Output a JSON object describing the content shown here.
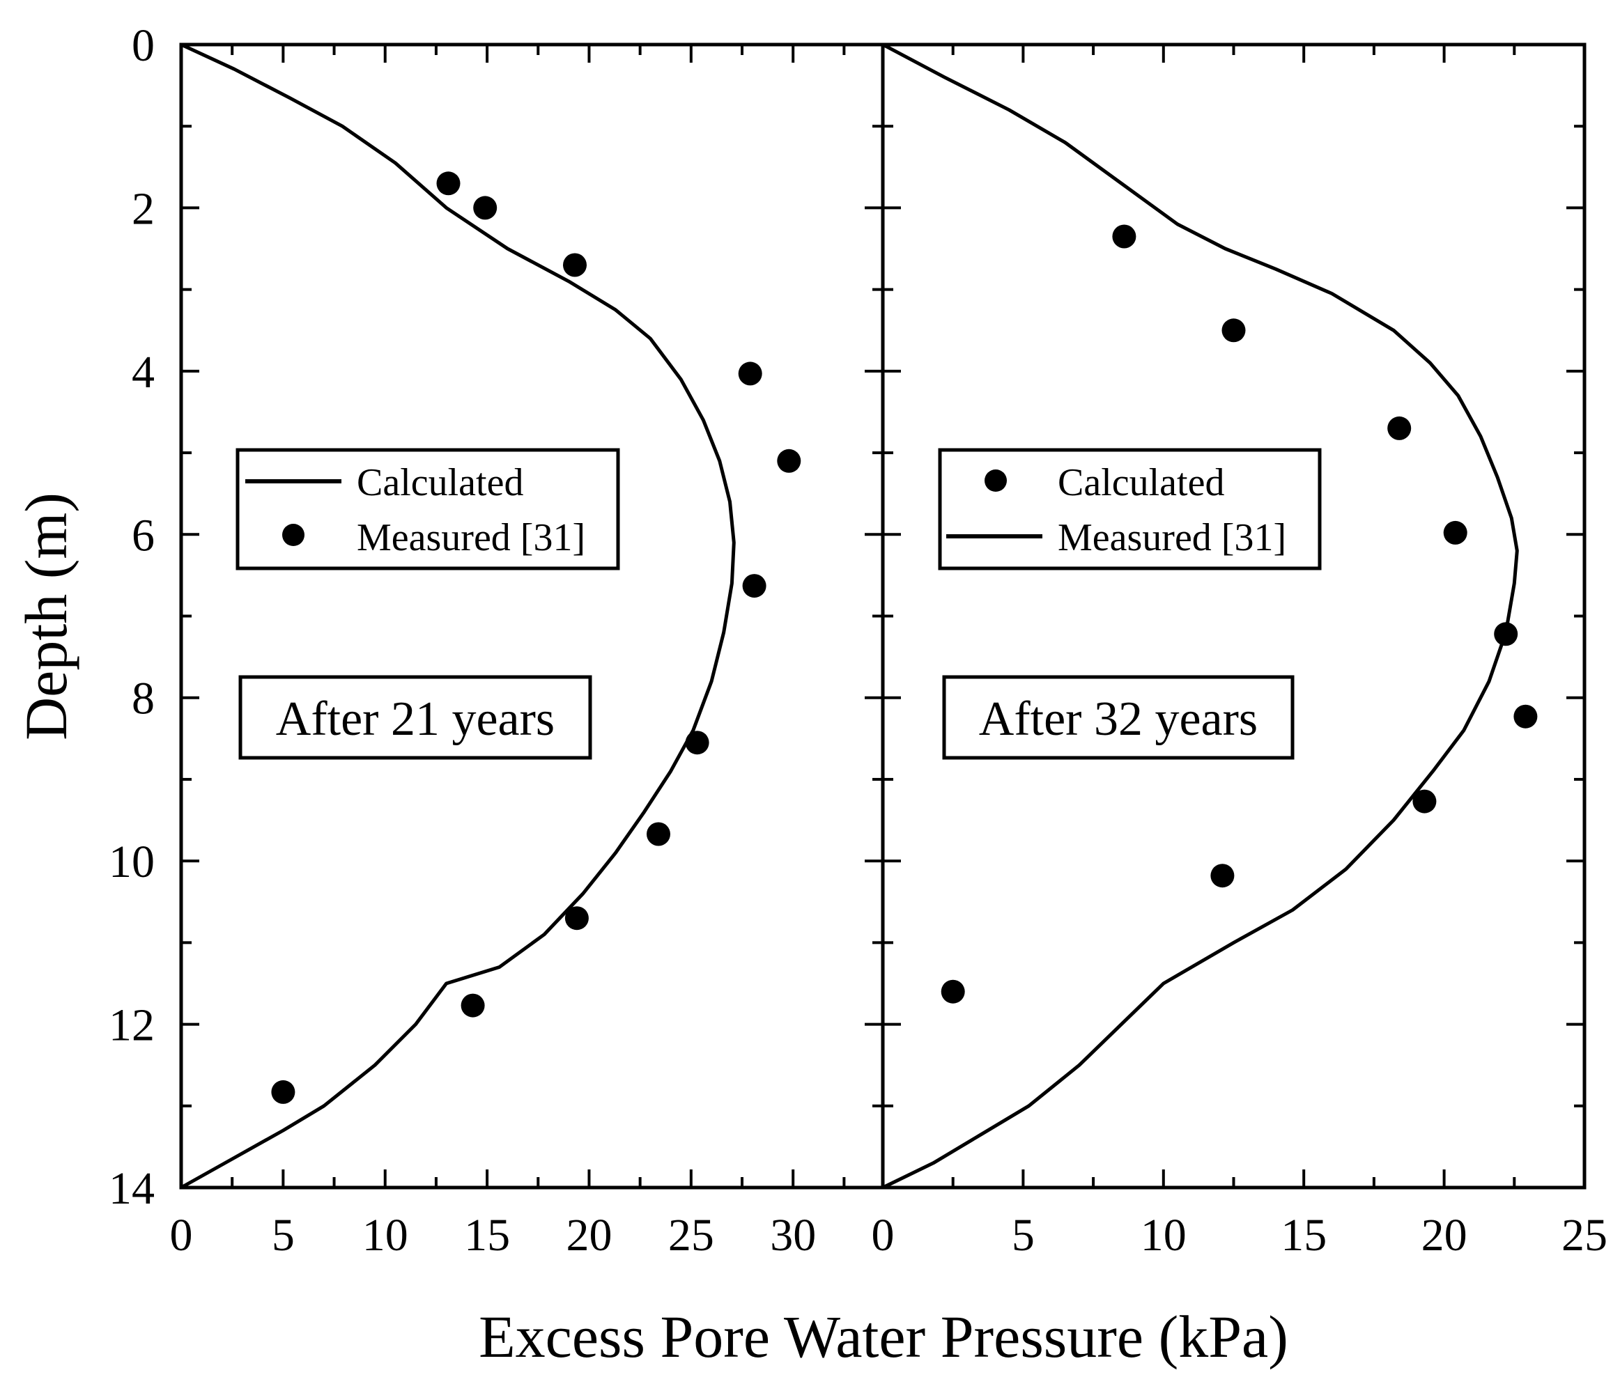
{
  "chart_data": [
    {
      "type": "line+scatter",
      "panel": "left",
      "annotation": "After 21 years",
      "xlim": [
        0,
        34.4
      ],
      "ylim": [
        14,
        0
      ],
      "xticks": [
        "0",
        "5",
        "10",
        "15",
        "20",
        "25",
        "30"
      ],
      "yticks": [
        "0",
        "2",
        "4",
        "6",
        "8",
        "10",
        "12",
        "14"
      ],
      "ylabel": "Depth (m)",
      "legend": [
        {
          "label": "Calculated",
          "marker": "line"
        },
        {
          "label": "Measured [31]",
          "marker": "dot"
        }
      ],
      "series": [
        {
          "name": "Calculated",
          "kind": "line",
          "points": [
            [
              0,
              0
            ],
            [
              2.6,
              0.3
            ],
            [
              5.3,
              0.65
            ],
            [
              7.9,
              1.0
            ],
            [
              10.5,
              1.45
            ],
            [
              13,
              2.0
            ],
            [
              16,
              2.5
            ],
            [
              19,
              2.9
            ],
            [
              21.3,
              3.25
            ],
            [
              23,
              3.6
            ],
            [
              24.5,
              4.1
            ],
            [
              25.6,
              4.6
            ],
            [
              26.4,
              5.1
            ],
            [
              26.9,
              5.6
            ],
            [
              27.1,
              6.1
            ],
            [
              27,
              6.6
            ],
            [
              26.6,
              7.2
            ],
            [
              26,
              7.8
            ],
            [
              25.1,
              8.4
            ],
            [
              24,
              8.9
            ],
            [
              22.7,
              9.4
            ],
            [
              21.3,
              9.9
            ],
            [
              19.7,
              10.4
            ],
            [
              17.8,
              10.9
            ],
            [
              15.6,
              11.3
            ],
            [
              13,
              11.5
            ],
            [
              11.5,
              12.0
            ],
            [
              9.5,
              12.5
            ],
            [
              7,
              13.0
            ],
            [
              5,
              13.3
            ],
            [
              2.5,
              13.65
            ],
            [
              0,
              14.0
            ]
          ]
        },
        {
          "name": "Measured [31]",
          "kind": "scatter",
          "points": [
            [
              13.1,
              1.7
            ],
            [
              14.9,
              2.0
            ],
            [
              19.3,
              2.7
            ],
            [
              27.9,
              4.03
            ],
            [
              29.8,
              5.1
            ],
            [
              28.1,
              6.63
            ],
            [
              25.3,
              8.55
            ],
            [
              23.4,
              9.67
            ],
            [
              19.4,
              10.7
            ],
            [
              14.3,
              11.77
            ],
            [
              5.0,
              12.83
            ]
          ]
        }
      ]
    },
    {
      "type": "line+scatter",
      "panel": "right",
      "annotation": "After 32 years",
      "xlim": [
        0,
        25
      ],
      "ylim": [
        14,
        0
      ],
      "xticks": [
        "0",
        "5",
        "10",
        "15",
        "20",
        "25"
      ],
      "legend": [
        {
          "label": "Calculated",
          "marker": "dot"
        },
        {
          "label": "Measured [31]",
          "marker": "line"
        }
      ],
      "series": [
        {
          "name": "Measured [31]",
          "kind": "line",
          "points": [
            [
              0,
              0
            ],
            [
              2.2,
              0.4
            ],
            [
              4.5,
              0.8
            ],
            [
              6.5,
              1.2
            ],
            [
              8.5,
              1.7
            ],
            [
              10.5,
              2.2
            ],
            [
              12.2,
              2.5
            ],
            [
              14,
              2.75
            ],
            [
              16,
              3.05
            ],
            [
              18.2,
              3.5
            ],
            [
              19.5,
              3.9
            ],
            [
              20.5,
              4.3
            ],
            [
              21.3,
              4.8
            ],
            [
              21.9,
              5.3
            ],
            [
              22.4,
              5.8
            ],
            [
              22.6,
              6.2
            ],
            [
              22.5,
              6.6
            ],
            [
              22.2,
              7.2
            ],
            [
              21.6,
              7.8
            ],
            [
              20.7,
              8.4
            ],
            [
              19.6,
              8.9
            ],
            [
              18.2,
              9.5
            ],
            [
              16.5,
              10.1
            ],
            [
              14.6,
              10.6
            ],
            [
              12.5,
              11.0
            ],
            [
              10,
              11.5
            ],
            [
              8.5,
              12.0
            ],
            [
              7,
              12.5
            ],
            [
              5.2,
              13.0
            ],
            [
              3.5,
              13.35
            ],
            [
              1.8,
              13.7
            ],
            [
              0,
              14.0
            ]
          ]
        },
        {
          "name": "Calculated",
          "kind": "scatter",
          "points": [
            [
              8.6,
              2.35
            ],
            [
              12.5,
              3.5
            ],
            [
              18.4,
              4.7
            ],
            [
              20.4,
              5.98
            ],
            [
              22.2,
              7.22
            ],
            [
              22.9,
              8.23
            ],
            [
              19.3,
              9.27
            ],
            [
              12.1,
              10.18
            ],
            [
              2.5,
              11.6
            ]
          ]
        }
      ]
    }
  ],
  "xlabel": "Excess Pore Water Pressure (kPa)"
}
